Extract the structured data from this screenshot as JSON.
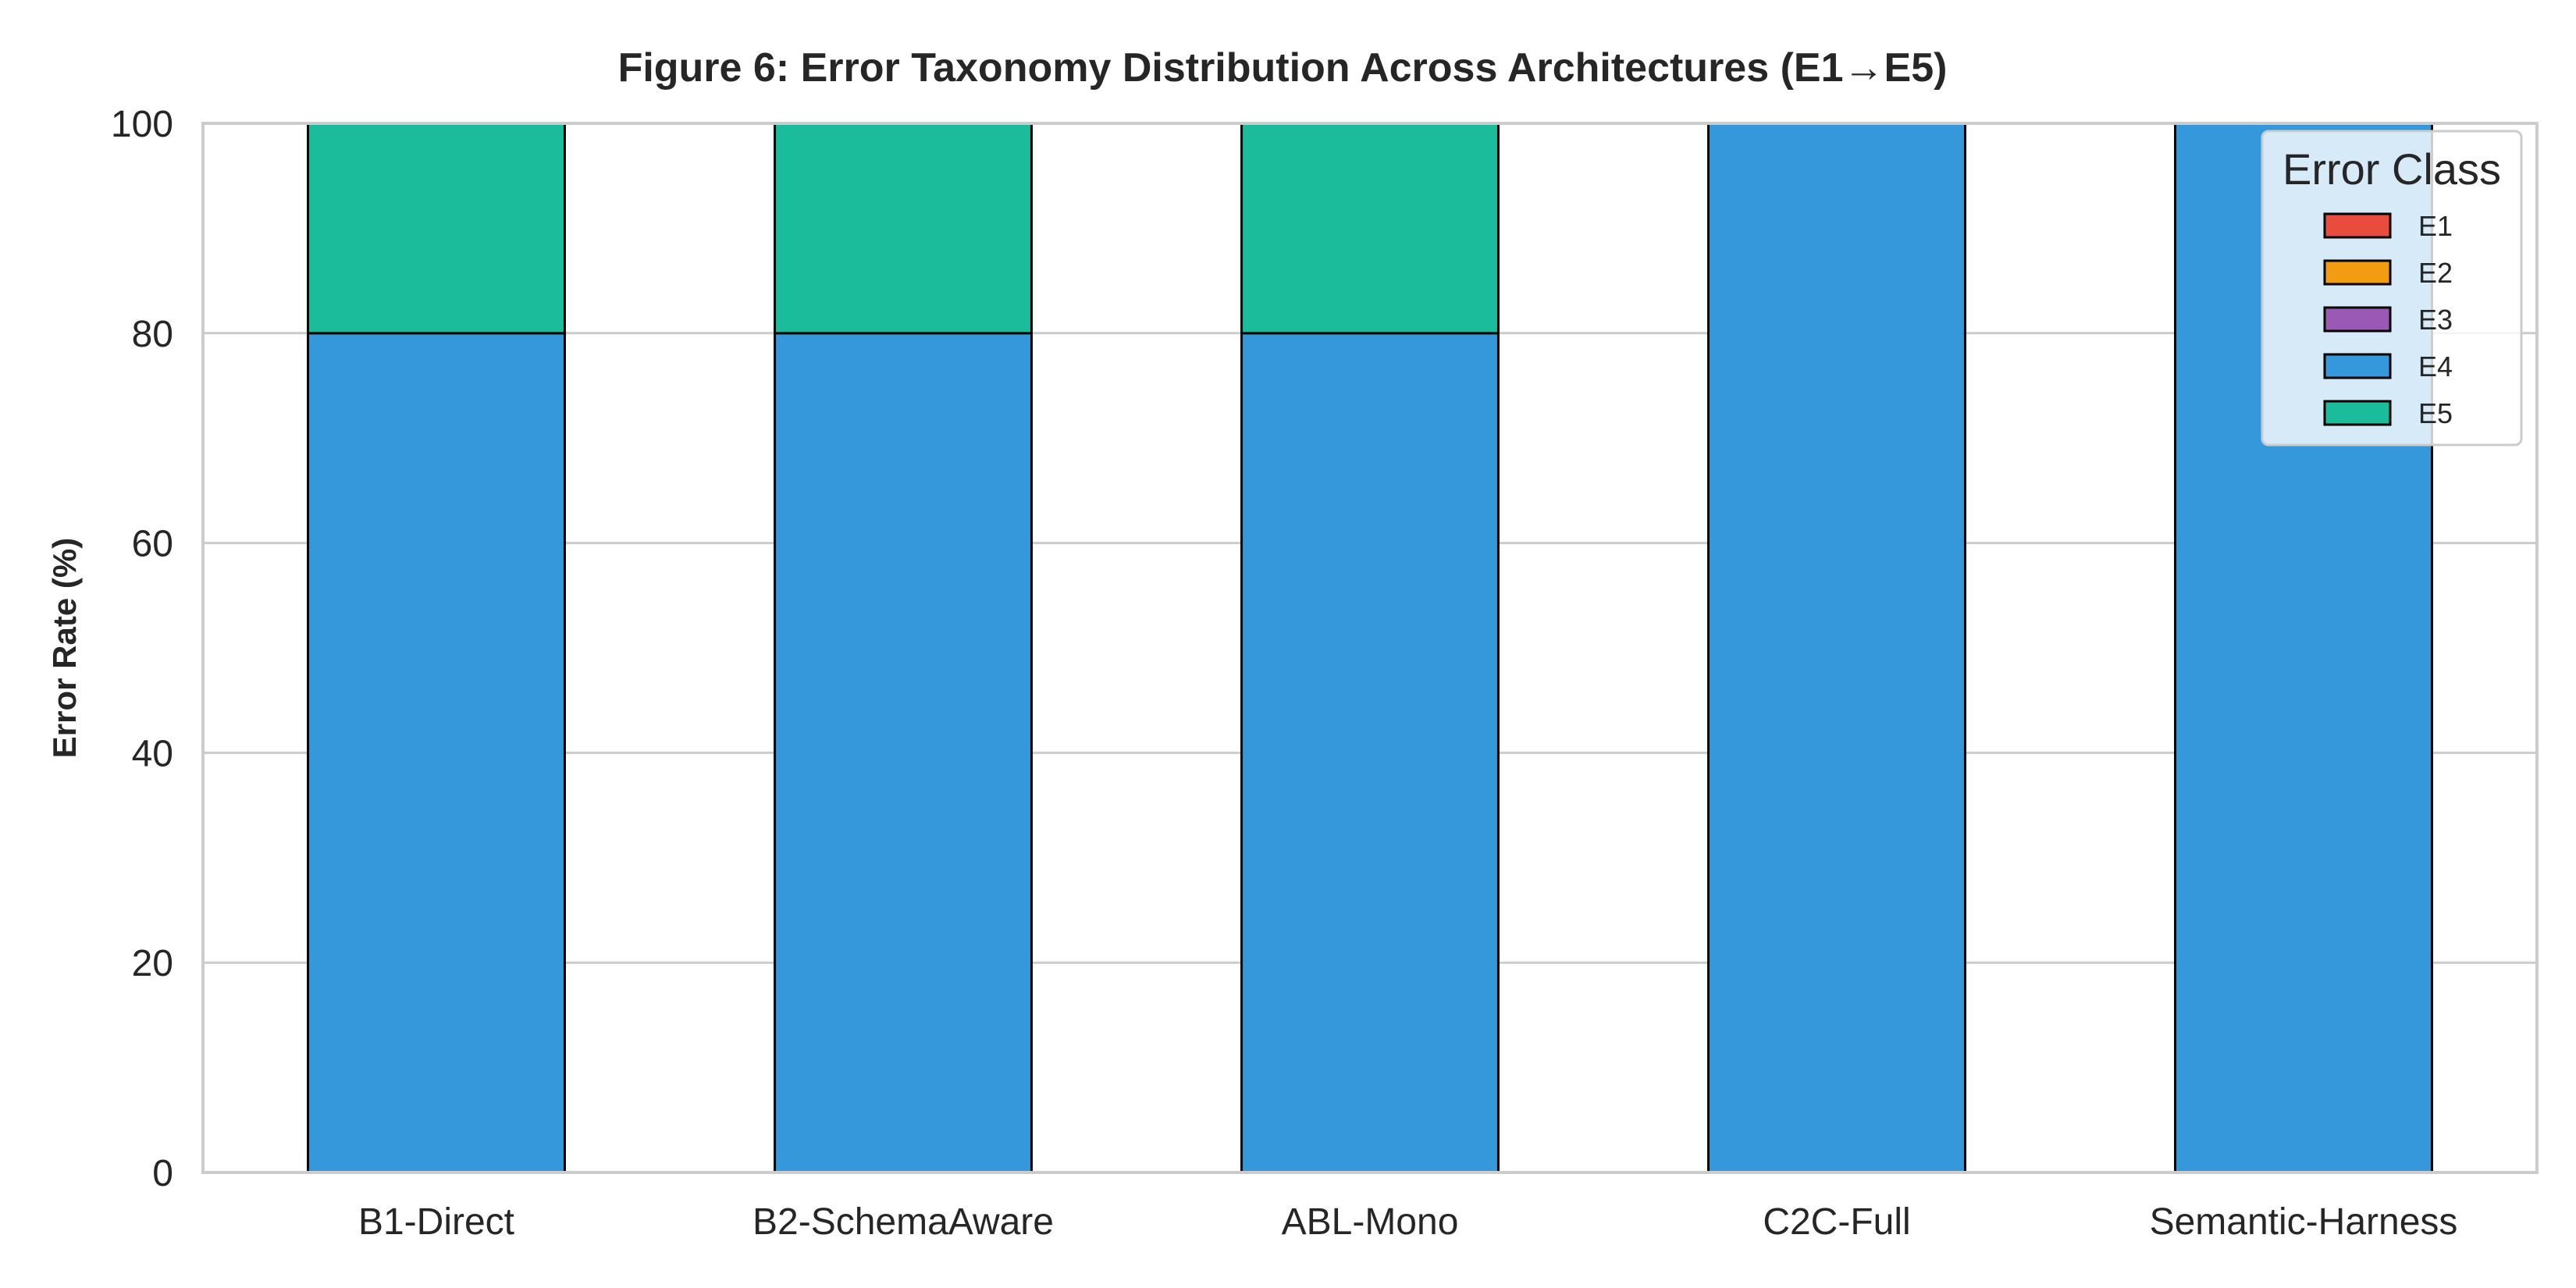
{
  "chart_data": {
    "type": "bar",
    "stacked": true,
    "title": "Figure 6: Error Taxonomy Distribution Across Architectures (E1→E5)",
    "xlabel": "",
    "ylabel": "Error Rate (%)",
    "ylim": [
      0,
      100
    ],
    "yticks": [
      0,
      20,
      40,
      60,
      80,
      100
    ],
    "grid": "horizontal",
    "categories": [
      "B1-Direct",
      "B2-SchemaAware",
      "ABL-Mono",
      "C2C-Full",
      "Semantic-Harness"
    ],
    "series": [
      {
        "name": "E1",
        "color": "#e74c3c",
        "values": [
          0,
          0,
          0,
          0,
          0
        ]
      },
      {
        "name": "E2",
        "color": "#f39c12",
        "values": [
          0,
          0,
          0,
          0,
          0
        ]
      },
      {
        "name": "E3",
        "color": "#9b59b6",
        "values": [
          0,
          0,
          0,
          0,
          0
        ]
      },
      {
        "name": "E4",
        "color": "#3498db",
        "values": [
          80,
          80,
          80,
          100,
          100
        ]
      },
      {
        "name": "E5",
        "color": "#1abc9c",
        "values": [
          20,
          20,
          20,
          0,
          0
        ]
      }
    ],
    "legend": {
      "title": "Error Class",
      "placement": "top-right"
    }
  }
}
